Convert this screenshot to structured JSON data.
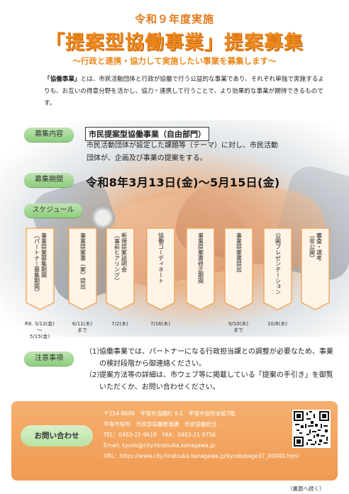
{
  "header": {
    "year_line": "令和９年度実施",
    "main_title": "「提案型協働事業」提案募集",
    "subtitle": "～行政と連携・協力して実施したい事業を募集します～"
  },
  "intro": {
    "term": "「協働事業」",
    "text": "とは、市民活動団体と行政が協働で行う公益的な事業であり、それぞれ単独で実施するよりも、お互いの得意分野を活かし、協力・連携して行うことで、より効果的な事業が期待できるものです。"
  },
  "recruit": {
    "label": "募集内容",
    "title": "市民提案型協働事業（自由部門）",
    "desc": "市民活動団体が設定した課題等（テーマ）に対し、市民活動団体が、企画及び事業の提案をする。"
  },
  "period": {
    "label": "募集期間",
    "text": "令和8年3月13日(金)～5月15日(金)"
  },
  "schedule": {
    "label": "スケジュール",
    "steps": [
      {
        "text": "事業提案募集期間\n（パートナー募集期間）",
        "date": "R8. 3/13(金)\n～\n5/15(金)"
      },
      {
        "text": "事業提案書（案）提出",
        "date": "6/11(木)\nまで"
      },
      {
        "text": "新規提案説明会\n（事前ヒアリング）",
        "date": "7/2(木)"
      },
      {
        "text": "協働コーディネート",
        "date": "7/16(木)"
      },
      {
        "text": "事業提案書修正期間",
        "date": ""
      },
      {
        "text": "事業提案書提出",
        "date": "9/10(木)\nまで"
      },
      {
        "text": "公開プレゼンテーション",
        "date": "10/8(木)"
      },
      {
        "text": "審査・選考\n（非公開）",
        "date": ""
      }
    ]
  },
  "notes": {
    "label": "注意事項",
    "items": [
      {
        "num": "（1）",
        "text": "協働事業では、パートナーになる行政担当課との調整が必要なため、事業の検討段階から御連絡ください。"
      },
      {
        "num": "（2）",
        "text": "提案方法等の詳細は、市ウェブ等に掲載している「提案の手引き」を御覧いただくか、お問い合わせください。"
      }
    ]
  },
  "contact": {
    "label": "お問い合わせ",
    "address": "〒254-8686　平塚市浅間町 9-1　平塚市役所本館7階",
    "office": "平塚市役所　市民部協働推進課　市民協働担当",
    "tel": "TEL：0463-21-9618　FAX：0463-21-9756",
    "email": "Email: kyodo@city.hiratsuka.kanagawa.jp",
    "url": "URL：https://www.city.hiratsuka.kanagawa.jp/kyodo/page37_00040.html"
  },
  "footer": {
    "back_note": "（裏面へ続く）"
  },
  "colors": {
    "accent": "#f08a1e",
    "pill_green": "#8ccf7c",
    "contact_orange": "#f09a52"
  }
}
